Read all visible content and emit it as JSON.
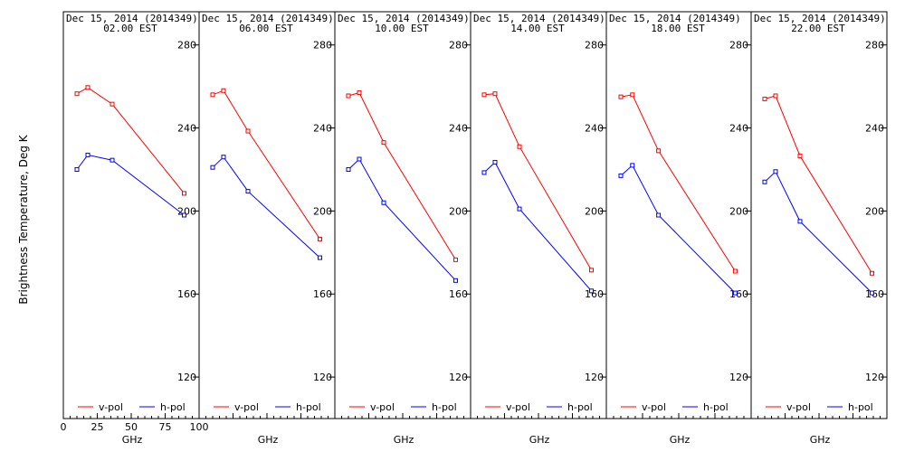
{
  "chart_data": {
    "type": "line",
    "ylabel": "Brightness Temperature, Deg K",
    "xlabel": "GHz",
    "ylim": [
      100,
      296
    ],
    "y_ticks": [
      120,
      160,
      200,
      240,
      280
    ],
    "first_panel_x_ticks": [
      "0",
      "25",
      "50",
      "75",
      "100"
    ],
    "xlim": [
      0,
      100
    ],
    "legend": {
      "placement": "bottom"
    },
    "colors": {
      "v-pol": "#ff0000",
      "h-pol": "#0000ff"
    },
    "x": [
      10,
      18,
      36,
      89
    ],
    "panels": [
      {
        "date": "Dec 15, 2014 (2014349)",
        "time": "02.00 EST",
        "series": [
          {
            "name": "v-pol",
            "values": [
              256.5,
              259.5,
              251.5,
              208.5
            ]
          },
          {
            "name": "h-pol",
            "values": [
              220,
              227,
              224.5,
              198
            ]
          }
        ]
      },
      {
        "date": "Dec 15, 2014 (2014349)",
        "time": "06.00 EST",
        "series": [
          {
            "name": "v-pol",
            "values": [
              256,
              258,
              238.5,
              186.5
            ]
          },
          {
            "name": "h-pol",
            "values": [
              221,
              226,
              209.5,
              177.5
            ]
          }
        ]
      },
      {
        "date": "Dec 15, 2014 (2014349)",
        "time": "10.00 EST",
        "series": [
          {
            "name": "v-pol",
            "values": [
              255.5,
              257,
              233,
              176.5
            ]
          },
          {
            "name": "h-pol",
            "values": [
              220,
              225,
              204,
              166.5
            ]
          }
        ]
      },
      {
        "date": "Dec 15, 2014 (2014349)",
        "time": "14.00 EST",
        "series": [
          {
            "name": "v-pol",
            "values": [
              256,
              256.5,
              231,
              171.5
            ]
          },
          {
            "name": "h-pol",
            "values": [
              218.5,
              223.5,
              201,
              161.5
            ]
          }
        ]
      },
      {
        "date": "Dec 15, 2014 (2014349)",
        "time": "18.00 EST",
        "series": [
          {
            "name": "v-pol",
            "values": [
              255,
              256,
              229,
              171
            ]
          },
          {
            "name": "h-pol",
            "values": [
              217,
              222,
              198,
              160.5
            ]
          }
        ]
      },
      {
        "date": "Dec 15, 2014 (2014349)",
        "time": "22.00 EST",
        "series": [
          {
            "name": "v-pol",
            "values": [
              254,
              255.5,
              226.5,
              170
            ]
          },
          {
            "name": "h-pol",
            "values": [
              214,
              219,
              195,
              160.5
            ]
          }
        ]
      }
    ]
  }
}
